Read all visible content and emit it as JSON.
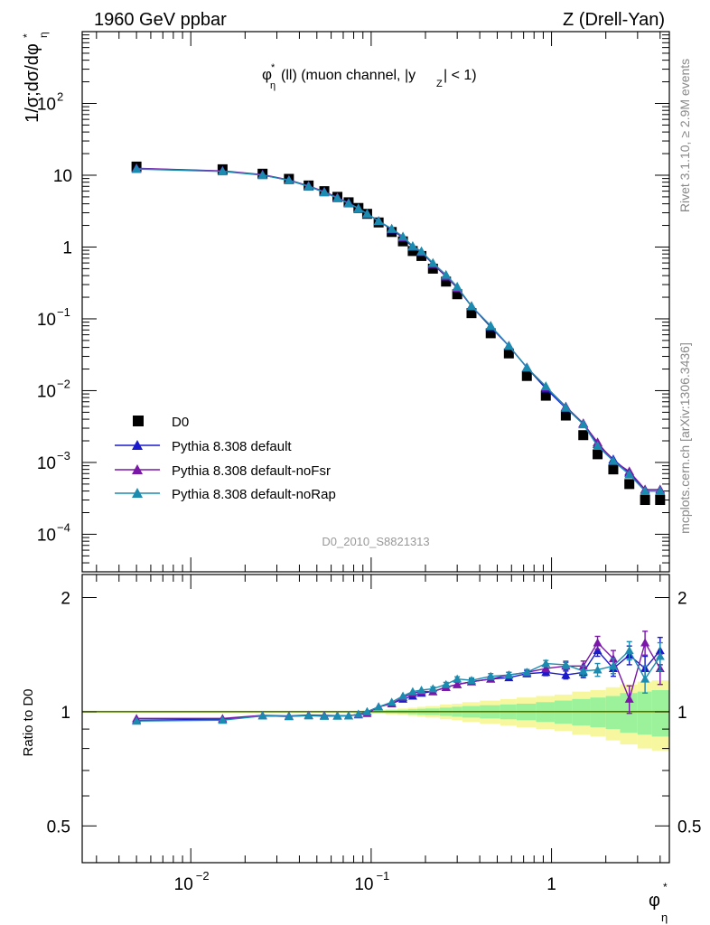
{
  "header": {
    "left": "1960 GeV ppbar",
    "right": "Z (Drell-Yan)",
    "subtitle": "(ll) (muon channel, |y",
    "subtitle_tail": "| < 1)"
  },
  "side": {
    "rivet": "Rivet 3.1.10, ≥ 2.9M events",
    "mcplots": "mcplots.cern.ch [arXiv:1306.3436]"
  },
  "watermark": "D0_2010_S8821313",
  "ylabel_main": "1/σ;dσ/dφ",
  "ylabel_ratio": "Ratio to D0",
  "xlabel": "φ",
  "legend": {
    "data": "D0",
    "mc1": "Pythia 8.308 default",
    "mc2": "Pythia 8.308 default-noFsr",
    "mc3": "Pythia 8.308 default-noRap"
  },
  "colors": {
    "data": "#000000",
    "mc1": "#1a1acc",
    "mc2": "#7a17a8",
    "mc3": "#1b8cb0",
    "band_inner": "#9bf29b",
    "band_outer": "#f7f7a0",
    "refline": "#a8e03a"
  },
  "chart_data": [
    {
      "type": "scatter",
      "title": "",
      "xlabel": "φ*_η",
      "ylabel": "1/σ;dσ/dφ*_η",
      "xscale": "log",
      "yscale": "log",
      "xlim": [
        0.0025,
        4.5
      ],
      "ylim": [
        3e-05,
        1000
      ],
      "x": [
        0.005,
        0.015,
        0.025,
        0.035,
        0.045,
        0.055,
        0.065,
        0.075,
        0.085,
        0.095,
        0.11,
        0.13,
        0.15,
        0.17,
        0.19,
        0.22,
        0.26,
        0.3,
        0.36,
        0.46,
        0.58,
        0.73,
        0.93,
        1.2,
        1.5,
        1.8,
        2.2,
        2.7,
        3.3,
        4.0
      ],
      "series": [
        {
          "name": "D0",
          "values": [
            13.2,
            12.1,
            10.5,
            8.9,
            7.2,
            6.0,
            5.0,
            4.2,
            3.5,
            2.9,
            2.2,
            1.62,
            1.2,
            0.88,
            0.75,
            0.5,
            0.33,
            0.22,
            0.12,
            0.063,
            0.033,
            0.016,
            0.0085,
            0.0045,
            0.0024,
            0.0013,
            0.0008,
            0.0005,
            0.0003,
            0.0003
          ]
        },
        {
          "name": "Pythia 8.308 default",
          "values": [
            12.4,
            11.4,
            10.1,
            8.5,
            7.0,
            5.8,
            4.8,
            4.1,
            3.45,
            2.9,
            2.3,
            1.75,
            1.35,
            1.0,
            0.85,
            0.58,
            0.39,
            0.27,
            0.15,
            0.077,
            0.042,
            0.021,
            0.0107,
            0.0057,
            0.0035,
            0.0018,
            0.0011,
            0.00072,
            0.0004,
            0.0004
          ]
        },
        {
          "name": "Pythia 8.308 default-noFsr",
          "values": [
            12.5,
            11.5,
            10.2,
            8.6,
            7.1,
            5.9,
            4.9,
            4.1,
            3.45,
            2.9,
            2.3,
            1.78,
            1.37,
            1.02,
            0.86,
            0.58,
            0.39,
            0.27,
            0.15,
            0.079,
            0.042,
            0.021,
            0.0113,
            0.006,
            0.0035,
            0.0019,
            0.00105,
            0.00075,
            0.00042,
            0.00042
          ]
        },
        {
          "name": "Pythia 8.308 default-noRap",
          "values": [
            12.2,
            11.3,
            10.0,
            8.5,
            7.0,
            5.8,
            4.8,
            4.05,
            3.45,
            2.9,
            2.3,
            1.8,
            1.4,
            1.03,
            0.87,
            0.6,
            0.41,
            0.28,
            0.15,
            0.08,
            0.042,
            0.021,
            0.0115,
            0.0058,
            0.0034,
            0.0017,
            0.00105,
            0.00068,
            0.0004,
            0.0004
          ]
        }
      ]
    },
    {
      "type": "line",
      "title": "",
      "ylabel": "Ratio to D0",
      "xscale": "log",
      "xlim": [
        0.0025,
        4.5
      ],
      "ylim": [
        0.4,
        2.3
      ],
      "yticks": [
        0.5,
        1,
        2
      ],
      "bins": [
        0.0025,
        0.01,
        0.02,
        0.03,
        0.04,
        0.05,
        0.06,
        0.07,
        0.08,
        0.09,
        0.1,
        0.12,
        0.14,
        0.16,
        0.18,
        0.2,
        0.24,
        0.28,
        0.32,
        0.4,
        0.52,
        0.64,
        0.82,
        1.04,
        1.3,
        1.64,
        2.0,
        2.4,
        3.0,
        3.6,
        4.5
      ],
      "band_inner_half": [
        0,
        0,
        0,
        0,
        0,
        0,
        0,
        0,
        0.003,
        0.005,
        0.008,
        0.01,
        0.012,
        0.015,
        0.018,
        0.02,
        0.025,
        0.03,
        0.035,
        0.04,
        0.045,
        0.05,
        0.06,
        0.07,
        0.08,
        0.09,
        0.1,
        0.12,
        0.13,
        0.14
      ],
      "band_outer_half": [
        0,
        0,
        0,
        0,
        0,
        0,
        0,
        0,
        0.005,
        0.008,
        0.012,
        0.016,
        0.02,
        0.025,
        0.03,
        0.035,
        0.045,
        0.05,
        0.06,
        0.07,
        0.08,
        0.09,
        0.1,
        0.11,
        0.13,
        0.14,
        0.16,
        0.18,
        0.2,
        0.21
      ],
      "x": [
        0.005,
        0.015,
        0.025,
        0.035,
        0.045,
        0.055,
        0.065,
        0.075,
        0.085,
        0.095,
        0.11,
        0.13,
        0.15,
        0.17,
        0.19,
        0.22,
        0.26,
        0.3,
        0.36,
        0.46,
        0.58,
        0.73,
        0.93,
        1.2,
        1.5,
        1.8,
        2.2,
        2.7,
        3.3,
        4.0
      ],
      "series": [
        {
          "name": "Pythia 8.308 default",
          "values": [
            0.95,
            0.955,
            0.975,
            0.972,
            0.978,
            0.975,
            0.975,
            0.975,
            0.985,
            1.0,
            1.03,
            1.05,
            1.08,
            1.1,
            1.12,
            1.13,
            1.16,
            1.18,
            1.2,
            1.22,
            1.23,
            1.26,
            1.27,
            1.25,
            1.27,
            1.45,
            1.3,
            1.41,
            1.3,
            1.45
          ],
          "errors": [
            0.005,
            0.005,
            0.005,
            0.005,
            0.005,
            0.005,
            0.005,
            0.005,
            0.005,
            0.005,
            0.006,
            0.007,
            0.008,
            0.01,
            0.01,
            0.012,
            0.015,
            0.016,
            0.018,
            0.02,
            0.02,
            0.022,
            0.025,
            0.03,
            0.04,
            0.05,
            0.06,
            0.08,
            0.1,
            0.12
          ]
        },
        {
          "name": "Pythia 8.308 default-noFsr",
          "values": [
            0.96,
            0.96,
            0.978,
            0.975,
            0.98,
            0.978,
            0.976,
            0.976,
            0.982,
            0.99,
            1.03,
            1.05,
            1.09,
            1.12,
            1.13,
            1.13,
            1.16,
            1.18,
            1.2,
            1.22,
            1.25,
            1.27,
            1.3,
            1.32,
            1.32,
            1.52,
            1.38,
            1.08,
            1.52,
            1.3
          ],
          "errors": [
            0.005,
            0.005,
            0.005,
            0.005,
            0.005,
            0.005,
            0.005,
            0.005,
            0.005,
            0.005,
            0.006,
            0.007,
            0.008,
            0.01,
            0.01,
            0.012,
            0.015,
            0.016,
            0.018,
            0.02,
            0.02,
            0.022,
            0.025,
            0.03,
            0.04,
            0.06,
            0.07,
            0.09,
            0.11,
            0.12
          ]
        },
        {
          "name": "Pythia 8.308 default-noRap",
          "values": [
            0.945,
            0.95,
            0.975,
            0.972,
            0.976,
            0.973,
            0.974,
            0.975,
            0.985,
            1.0,
            1.03,
            1.06,
            1.1,
            1.13,
            1.14,
            1.15,
            1.18,
            1.22,
            1.21,
            1.24,
            1.25,
            1.27,
            1.34,
            1.33,
            1.28,
            1.29,
            1.32,
            1.45,
            1.22,
            1.4
          ],
          "errors": [
            0.005,
            0.005,
            0.005,
            0.005,
            0.005,
            0.005,
            0.005,
            0.005,
            0.005,
            0.005,
            0.006,
            0.007,
            0.008,
            0.01,
            0.01,
            0.012,
            0.015,
            0.016,
            0.018,
            0.02,
            0.02,
            0.022,
            0.025,
            0.03,
            0.04,
            0.05,
            0.06,
            0.08,
            0.1,
            0.12
          ]
        }
      ]
    }
  ]
}
